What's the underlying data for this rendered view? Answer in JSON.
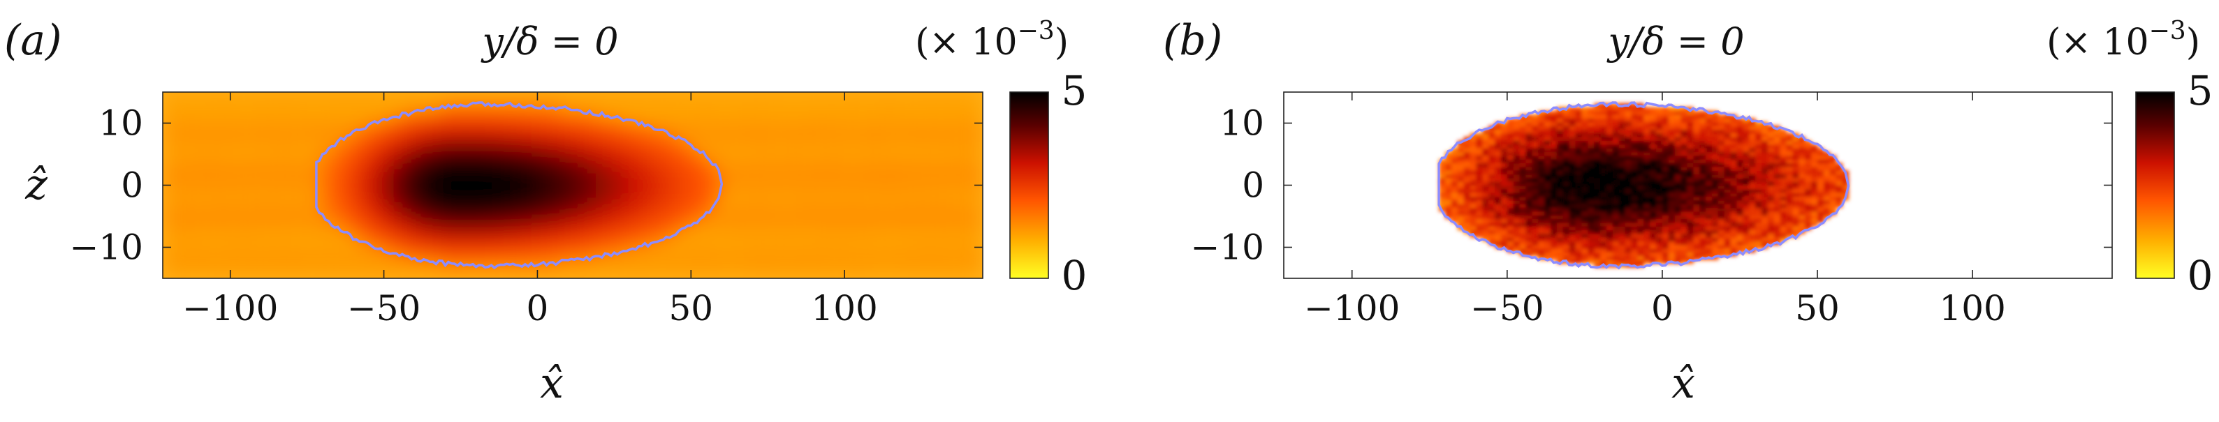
{
  "colorscale": [
    "#ffff24",
    "#ffb000",
    "#ff5500",
    "#cc1100",
    "#5a0000",
    "#000000"
  ],
  "contour_color": "#8c8cff",
  "chart_data": [
    {
      "type": "heatmap",
      "panel_label": "(a)",
      "title": "y/δ = 0",
      "xlabel": "x̂",
      "ylabel": "ẑ",
      "xlim": [
        -122,
        145
      ],
      "ylim": [
        -15,
        15
      ],
      "xticks": [
        -100,
        -50,
        0,
        50,
        100
      ],
      "yticks": [
        -10,
        0,
        10
      ],
      "colorbar": {
        "min": 0,
        "max": 5,
        "ticks": [
          0,
          5
        ],
        "multiplier": "(× 10",
        "exponent": "−3",
        "close": ")"
      },
      "field": {
        "background_value": 1.1,
        "peak_value": 5.0,
        "peak_center": [
          -25,
          0
        ],
        "noisy": false
      },
      "contour": {
        "x_start": -72,
        "x_end": 60,
        "max_half_width": 13,
        "x_at_max_width": -15
      }
    },
    {
      "type": "heatmap",
      "panel_label": "(b)",
      "title": "y/δ = 0",
      "xlabel": "x̂",
      "ylabel": "",
      "xlim": [
        -122,
        145
      ],
      "ylim": [
        -15,
        15
      ],
      "xticks": [
        -100,
        -50,
        0,
        50,
        100
      ],
      "yticks": [
        -10,
        0,
        10
      ],
      "colorbar": {
        "min": 0,
        "max": 5,
        "ticks": [
          0,
          5
        ],
        "multiplier": "(× 10",
        "exponent": "−3",
        "close": ")"
      },
      "field": {
        "background_value": null,
        "peak_value": 5.0,
        "peak_center": [
          -25,
          0
        ],
        "noisy": true
      },
      "contour": {
        "x_start": -72,
        "x_end": 60,
        "max_half_width": 13,
        "x_at_max_width": -15
      }
    }
  ]
}
